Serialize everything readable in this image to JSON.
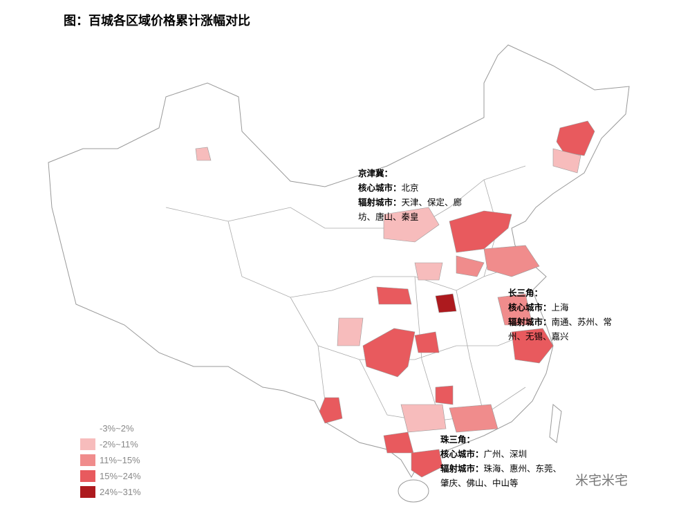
{
  "title": "图：百城各区域价格累计涨幅对比",
  "legend": [
    {
      "label": "-3%~2%",
      "color": "#ffffff"
    },
    {
      "label": "-2%~11%",
      "color": "#f7bcbc"
    },
    {
      "label": "11%~15%",
      "color": "#f08c8c"
    },
    {
      "label": "15%~24%",
      "color": "#e85a5e"
    },
    {
      "label": "24%~31%",
      "color": "#ad1a1e"
    }
  ],
  "annotations": [
    {
      "heading": "京津冀：",
      "core_label": "核心城市：",
      "core": "北京",
      "radiating_label": "辐射城市：",
      "radiating": "天津、保定、廊坊、唐山、秦皇"
    },
    {
      "heading": "长三角：",
      "core_label": "核心城市：",
      "core": "上海",
      "radiating_label": "辐射城市：",
      "radiating": "南通、苏州、常州、无锡、嘉兴"
    },
    {
      "heading": "珠三角：",
      "core_label": "核心城市：",
      "core": "广州、深圳",
      "radiating_label": "辐射城市：",
      "radiating": "珠海、惠州、东莞、肇庆、佛山、中山等"
    }
  ],
  "watermark": "米宅米宅"
}
